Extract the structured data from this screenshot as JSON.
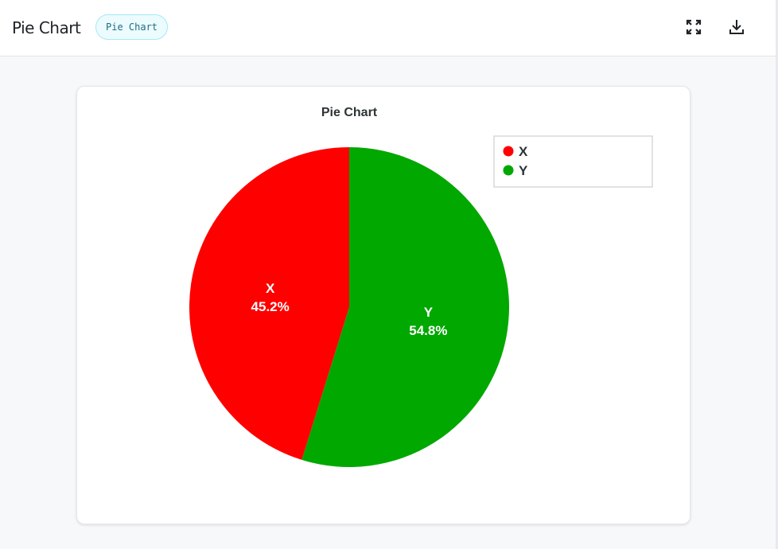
{
  "header": {
    "title": "Pie Chart",
    "badge": "Pie Chart",
    "icons": [
      "fullscreen-icon",
      "download-icon"
    ]
  },
  "chart_data": {
    "type": "pie",
    "title": "Pie Chart",
    "categories": [
      "X",
      "Y"
    ],
    "values": [
      45.2,
      54.8
    ],
    "labels": [
      "45.2%",
      "54.8%"
    ],
    "colors": [
      "#ff0000",
      "#00a800"
    ],
    "legend": "top-right"
  }
}
